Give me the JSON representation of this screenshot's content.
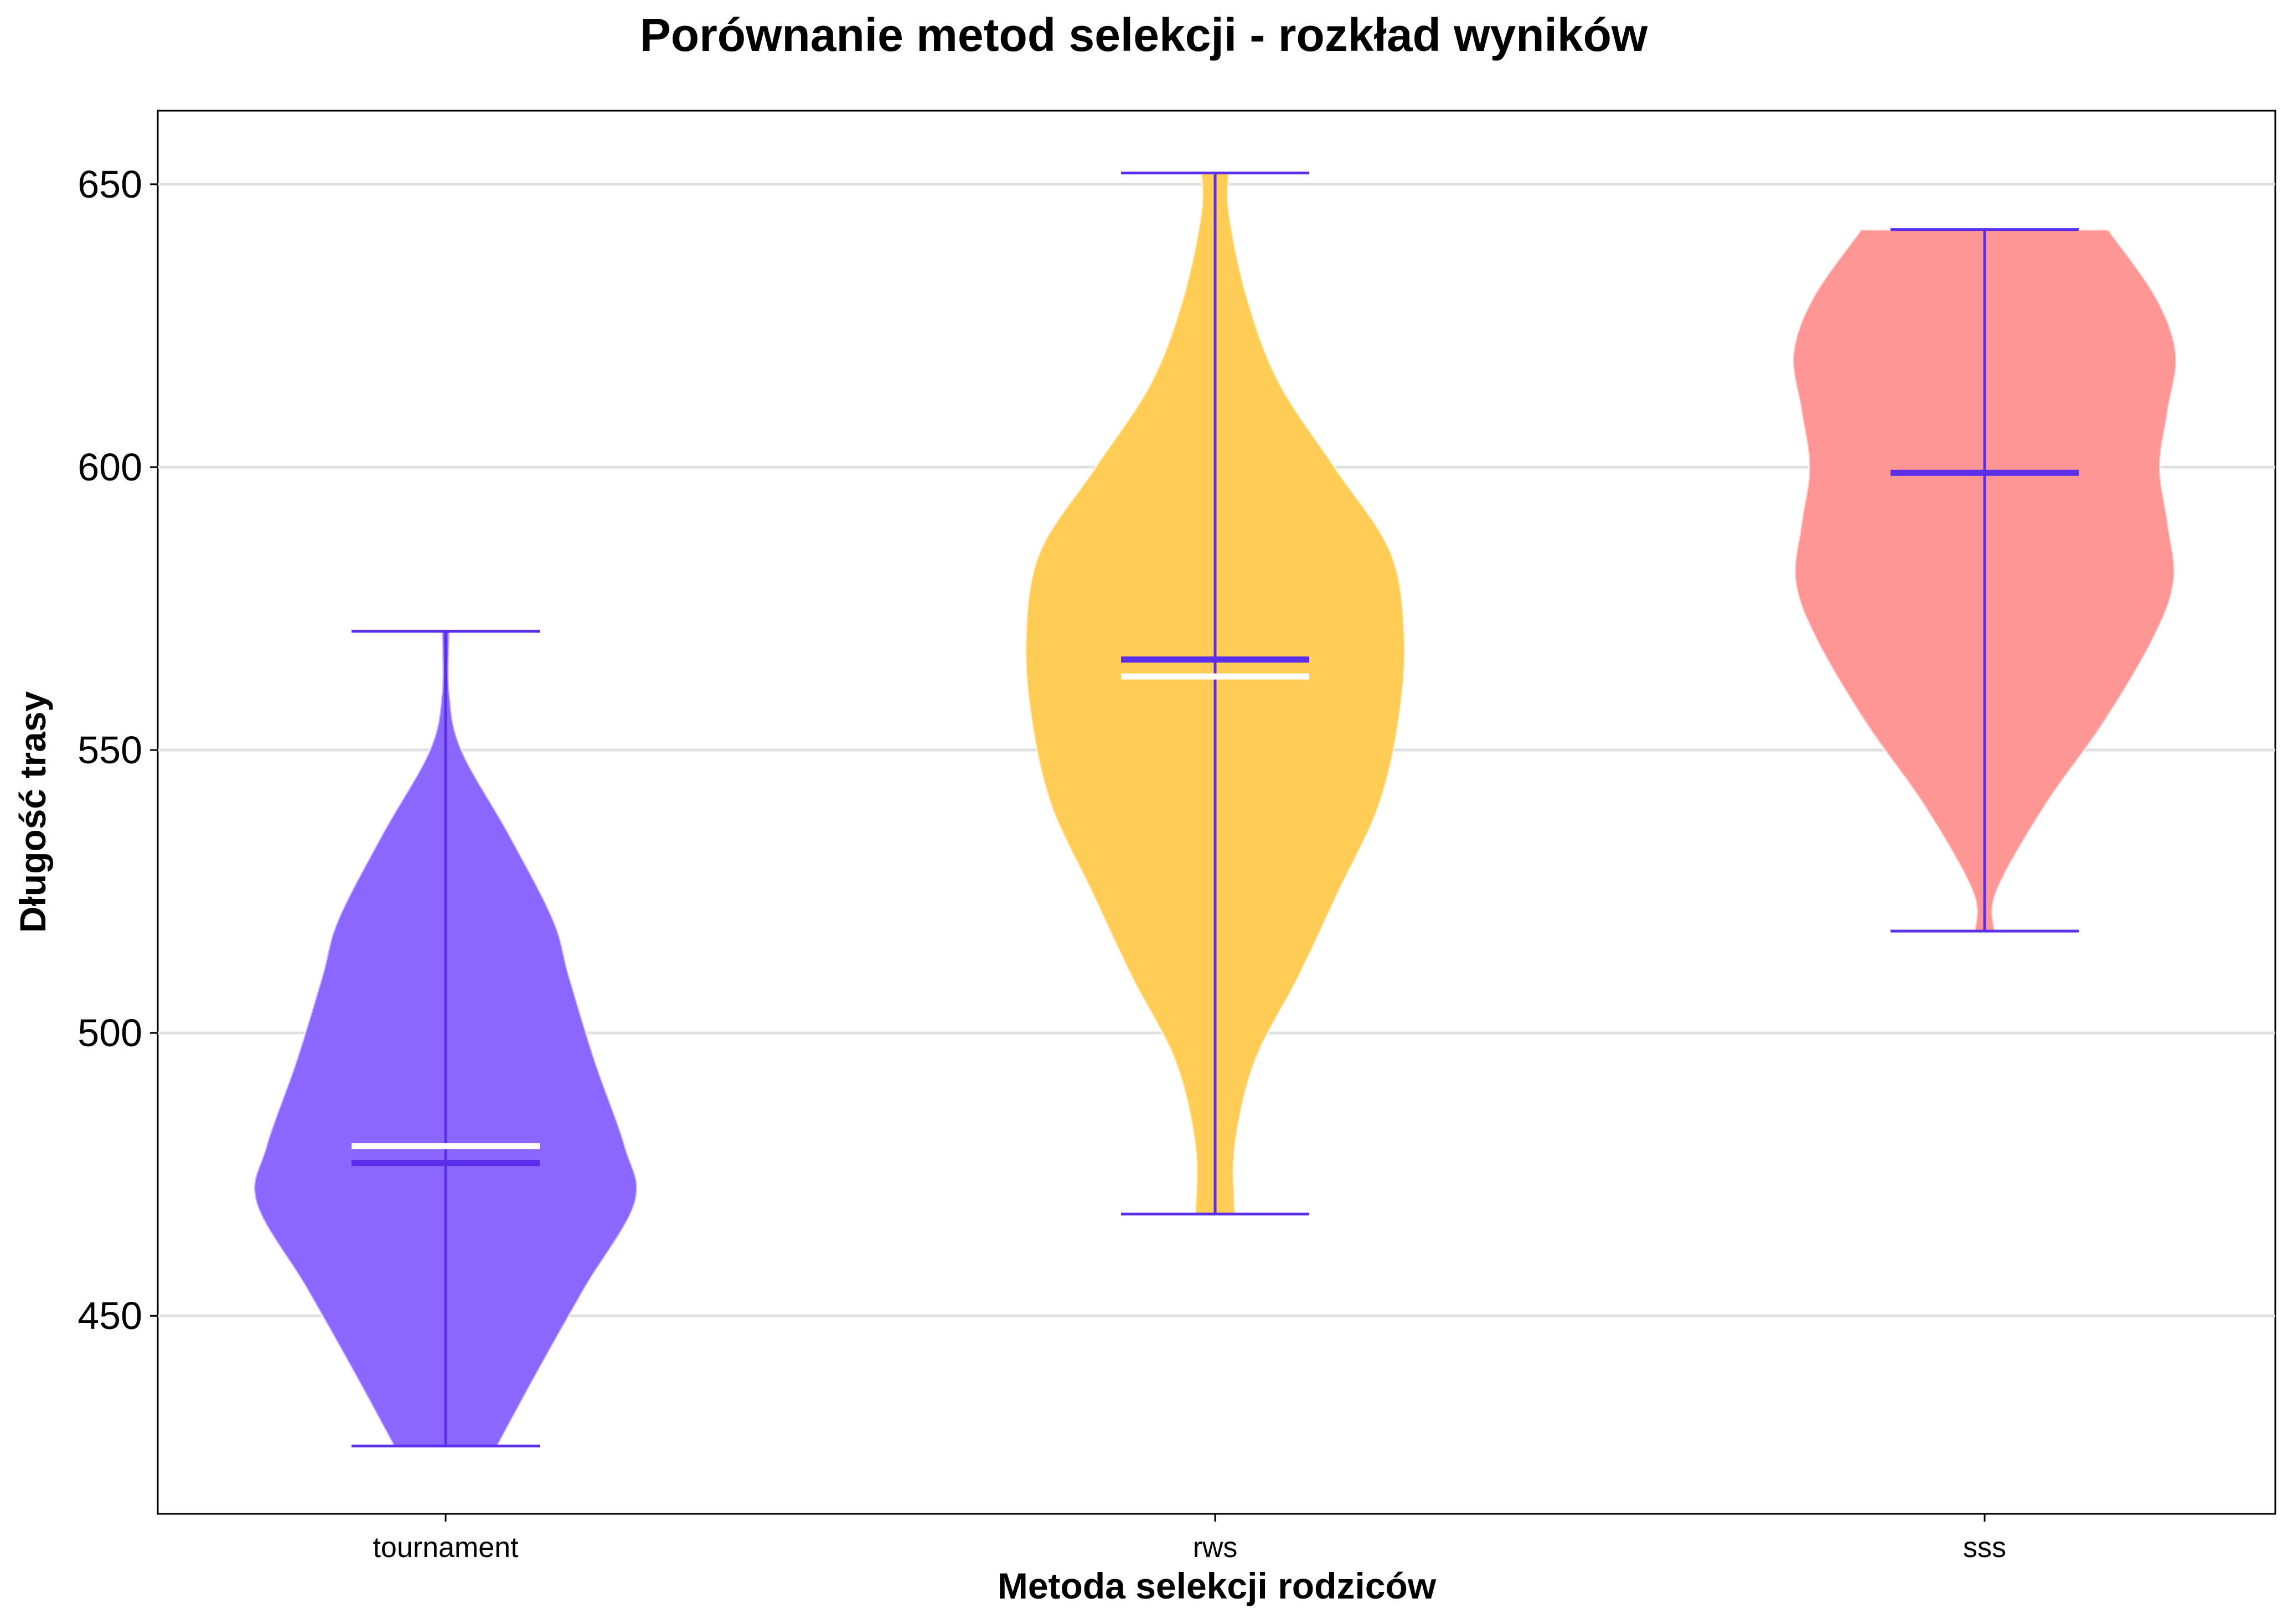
{
  "chart_data": {
    "type": "violin",
    "title": "Porównanie metod selekcji - rozkład wyników",
    "xlabel": "Metoda selekcji rodziców",
    "ylabel": "Długość trasy",
    "ylim": [
      415,
      663
    ],
    "yticks": [
      450,
      500,
      550,
      600,
      650
    ],
    "grid": "horizontal",
    "colors": {
      "tournament": "#8B66FF",
      "rws": "#FFCD55",
      "sss": "#FF9696",
      "lines": "#5B2EEB",
      "mean_line": "#ffffff",
      "grid": "#e0e0e0"
    },
    "categories": [
      "tournament",
      "rws",
      "sss"
    ],
    "series": [
      {
        "label": "tournament",
        "min": 427,
        "max": 571,
        "median": 477,
        "mean": 480,
        "profile": [
          [
            427,
            0.26
          ],
          [
            440,
            0.46
          ],
          [
            455,
            0.7
          ],
          [
            470,
            0.95
          ],
          [
            480,
            0.9
          ],
          [
            495,
            0.75
          ],
          [
            510,
            0.62
          ],
          [
            520,
            0.54
          ],
          [
            535,
            0.32
          ],
          [
            550,
            0.08
          ],
          [
            560,
            0.02
          ],
          [
            571,
            0.02
          ]
        ]
      },
      {
        "label": "rws",
        "min": 468,
        "max": 652,
        "median": 566,
        "mean": 563,
        "profile": [
          [
            468,
            0.1
          ],
          [
            480,
            0.1
          ],
          [
            495,
            0.2
          ],
          [
            510,
            0.42
          ],
          [
            525,
            0.62
          ],
          [
            540,
            0.82
          ],
          [
            555,
            0.92
          ],
          [
            570,
            0.95
          ],
          [
            585,
            0.88
          ],
          [
            600,
            0.6
          ],
          [
            615,
            0.32
          ],
          [
            630,
            0.16
          ],
          [
            645,
            0.07
          ],
          [
            652,
            0.07
          ]
        ]
      },
      {
        "label": "sss",
        "min": 518,
        "max": 642,
        "median": 599,
        "mean": 599,
        "profile": [
          [
            518,
            0.05
          ],
          [
            525,
            0.06
          ],
          [
            540,
            0.3
          ],
          [
            555,
            0.6
          ],
          [
            570,
            0.85
          ],
          [
            580,
            0.95
          ],
          [
            590,
            0.92
          ],
          [
            600,
            0.88
          ],
          [
            610,
            0.92
          ],
          [
            620,
            0.96
          ],
          [
            630,
            0.86
          ],
          [
            642,
            0.62
          ]
        ]
      }
    ]
  }
}
